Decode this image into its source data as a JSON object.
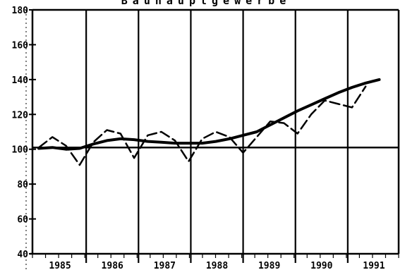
{
  "chart_data": {
    "type": "line",
    "title": "Bauhauptgewerbe",
    "xlabel": "",
    "ylabel": "",
    "ylim": [
      40,
      180
    ],
    "y_ticks": [
      40,
      60,
      80,
      100,
      120,
      140,
      160,
      180
    ],
    "x_categories": [
      "1985",
      "1986",
      "1987",
      "1988",
      "1989",
      "1990",
      "1991"
    ],
    "grid": "vertical lines between years",
    "reference_line": 101,
    "series": [
      {
        "style": "dashed",
        "x": [
          1985.0,
          1985.25,
          1985.5,
          1985.75,
          1986.0,
          1986.25,
          1986.5,
          1986.75,
          1987.0,
          1987.25,
          1987.5,
          1987.75,
          1988.0,
          1988.25,
          1988.5,
          1988.75,
          1989.0,
          1989.25,
          1989.5,
          1989.75,
          1990.0,
          1990.25,
          1990.5,
          1990.75,
          1991.0
        ],
        "values": [
          101,
          107,
          102,
          91,
          104,
          111,
          109,
          95,
          108,
          110,
          105,
          93,
          106,
          110,
          107,
          98,
          107,
          116,
          115,
          109,
          120,
          128,
          126,
          124,
          136
        ]
      },
      {
        "style": "solid",
        "x": [
          1985.0,
          1985.25,
          1985.5,
          1985.75,
          1986.0,
          1986.25,
          1986.5,
          1986.75,
          1987.0,
          1987.25,
          1987.5,
          1987.75,
          1988.0,
          1988.25,
          1988.5,
          1988.75,
          1989.0,
          1989.25,
          1989.5,
          1989.75,
          1990.0,
          1990.25,
          1990.5,
          1990.75,
          1991.0,
          1991.25
        ],
        "values": [
          100.5,
          101,
          100,
          100.5,
          103,
          105,
          106,
          105.5,
          104.5,
          104,
          103.5,
          103.5,
          103.5,
          104.5,
          106,
          108,
          110,
          114,
          118,
          122,
          125.5,
          129,
          132.5,
          135.5,
          138,
          140
        ]
      }
    ]
  }
}
